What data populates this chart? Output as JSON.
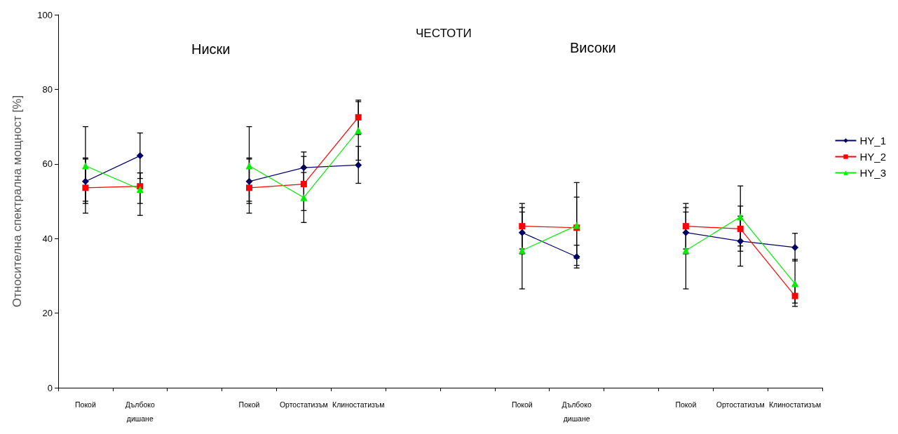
{
  "chart_data": {
    "type": "line",
    "title": "ЧЕСТОТИ",
    "ylabel": "Относителна спектрална мощност [%]",
    "annotations": [
      "Ниски",
      "Високи"
    ],
    "categories": [
      "Покой",
      "Дълбоко дишане",
      null,
      "Покой",
      "Ортостатизъм",
      "Клиностатизъм",
      null,
      null,
      "Покой",
      "Дълбоко дишане",
      null,
      "Покой",
      "Ортостатизъм",
      "Клиностатизъм"
    ],
    "series": [
      {
        "name": "HY_1",
        "color": "#000066",
        "marker": "diamond",
        "values": [
          55.3,
          62.2,
          null,
          55.3,
          59,
          59.7,
          null,
          null,
          41.6,
          35.1,
          null,
          41.6,
          39.3,
          37.6
        ],
        "errors": [
          [
            50,
            61.6
          ],
          [
            56.1,
            68.3
          ],
          null,
          [
            50,
            61.6
          ],
          [
            55,
            63.2
          ],
          [
            54.8,
            64.7
          ],
          null,
          null,
          [
            35.9,
            48.3
          ],
          [
            32.1,
            38.2
          ],
          null,
          [
            35.9,
            48.3
          ],
          [
            32.6,
            46
          ],
          [
            34,
            41.4
          ]
        ]
      },
      {
        "name": "HY_2",
        "color": "#ff0000",
        "marker": "square",
        "values": [
          53.6,
          54,
          null,
          53.6,
          54.6,
          72.5,
          null,
          null,
          43.3,
          42.9,
          null,
          43.3,
          42.6,
          24.6
        ],
        "errors": [
          [
            46.8,
            61.3
          ],
          [
            49.4,
            57.6
          ],
          null,
          [
            46.8,
            61.3
          ],
          [
            47.5,
            62
          ],
          [
            67.9,
            77.1
          ],
          null,
          null,
          [
            37.2,
            49.4
          ],
          [
            34.7,
            51.1
          ],
          null,
          [
            37.2,
            49.4
          ],
          [
            36.6,
            48.7
          ],
          [
            21.8,
            27.4
          ]
        ]
      },
      {
        "name": "HY_3",
        "color": "#00ee00",
        "marker": "triangle",
        "values": [
          59.5,
          53.2,
          null,
          59.5,
          51,
          69,
          null,
          null,
          36.8,
          43.5,
          null,
          36.8,
          45.8,
          27.9
        ],
        "errors": [
          [
            49.4,
            70
          ],
          [
            46.2,
            57.6
          ],
          null,
          [
            49.4,
            70
          ],
          [
            44.3,
            57.7
          ],
          [
            61,
            76.7
          ],
          null,
          null,
          [
            26.5,
            47.1
          ],
          [
            32.8,
            55
          ],
          null,
          [
            26.5,
            47.1
          ],
          [
            38,
            54.1
          ],
          [
            22.7,
            34.4
          ]
        ]
      }
    ],
    "ylim": [
      0,
      100
    ],
    "yticks": [
      0,
      20,
      40,
      60,
      80,
      100
    ],
    "grid": false,
    "legend": "right",
    "line_style": "solid"
  }
}
